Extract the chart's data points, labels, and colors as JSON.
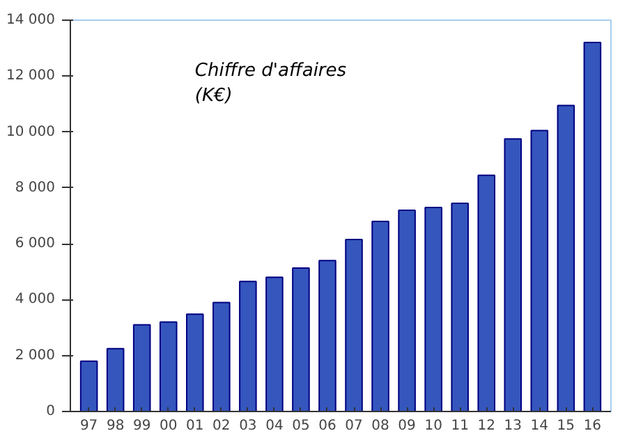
{
  "chart_data": {
    "type": "bar",
    "title": "Chiffre d'affaires\n(K€)",
    "categories": [
      "97",
      "98",
      "99",
      "00",
      "01",
      "02",
      "03",
      "04",
      "05",
      "06",
      "07",
      "08",
      "09",
      "10",
      "11",
      "12",
      "13",
      "14",
      "15",
      "16"
    ],
    "values": [
      1800,
      2250,
      3100,
      3200,
      3480,
      3900,
      4650,
      4800,
      5130,
      5400,
      6150,
      6800,
      7200,
      7300,
      7450,
      8450,
      9750,
      10050,
      10950,
      13200
    ],
    "color": "#3556bd",
    "ylim": [
      0,
      14000
    ],
    "yticks": [
      {
        "value": 0,
        "label": "0"
      },
      {
        "value": 2000,
        "label": "2 000"
      },
      {
        "value": 4000,
        "label": "4 000"
      },
      {
        "value": 6000,
        "label": "6 000"
      },
      {
        "value": 8000,
        "label": "8 000"
      },
      {
        "value": 10000,
        "label": "10 000"
      },
      {
        "value": 12000,
        "label": "12 000"
      },
      {
        "value": 14000,
        "label": "14 000"
      }
    ],
    "grid": false
  }
}
